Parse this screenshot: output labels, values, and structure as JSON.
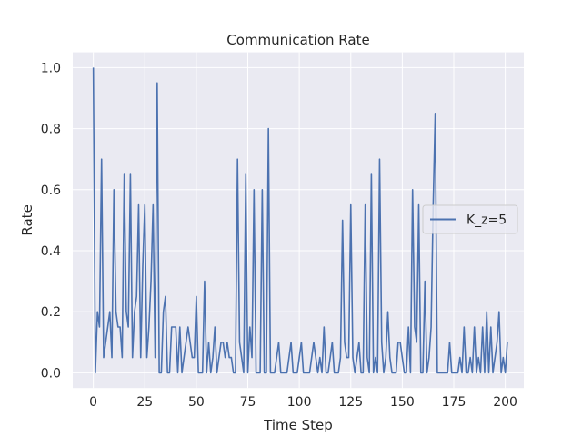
{
  "chart_data": {
    "type": "line",
    "title": "Communication Rate",
    "xlabel": "Time Step",
    "ylabel": "Rate",
    "xlim": [
      -10,
      209
    ],
    "ylim": [
      -0.05,
      1.05
    ],
    "xticks": [
      0,
      25,
      50,
      75,
      100,
      125,
      150,
      175,
      200
    ],
    "yticks": [
      0.0,
      0.2,
      0.4,
      0.6,
      0.8,
      1.0
    ],
    "ytick_labels": [
      "0.0",
      "0.2",
      "0.4",
      "0.6",
      "0.8",
      "1.0"
    ],
    "grid": true,
    "background": "#eaeaf2",
    "legend": {
      "placement": "right"
    },
    "series": [
      {
        "name": "K_z=5",
        "color": "#4c72b0",
        "values": [
          1.0,
          0.0,
          0.2,
          0.15,
          0.7,
          0.05,
          0.1,
          0.15,
          0.2,
          0.05,
          0.6,
          0.2,
          0.15,
          0.15,
          0.05,
          0.65,
          0.2,
          0.15,
          0.65,
          0.05,
          0.2,
          0.25,
          0.55,
          0.05,
          0.35,
          0.55,
          0.05,
          0.15,
          0.3,
          0.55,
          0.05,
          0.95,
          0.0,
          0.0,
          0.2,
          0.25,
          0.0,
          0.0,
          0.15,
          0.15,
          0.15,
          0.0,
          0.15,
          0.0,
          0.05,
          0.1,
          0.15,
          0.1,
          0.05,
          0.05,
          0.25,
          0.0,
          0.0,
          0.0,
          0.3,
          0.0,
          0.1,
          0.0,
          0.05,
          0.15,
          0.0,
          0.05,
          0.1,
          0.1,
          0.05,
          0.1,
          0.05,
          0.05,
          0.0,
          0.0,
          0.7,
          0.1,
          0.05,
          0.0,
          0.65,
          0.0,
          0.15,
          0.05,
          0.6,
          0.0,
          0.0,
          0.0,
          0.6,
          0.0,
          0.0,
          0.8,
          0.0,
          0.0,
          0.0,
          0.05,
          0.1,
          0.0,
          0.0,
          0.0,
          0.0,
          0.05,
          0.1,
          0.0,
          0.0,
          0.0,
          0.05,
          0.1,
          0.0,
          0.0,
          0.0,
          0.0,
          0.05,
          0.1,
          0.05,
          0.0,
          0.05,
          0.0,
          0.15,
          0.0,
          0.0,
          0.05,
          0.1,
          0.0,
          0.0,
          0.0,
          0.05,
          0.5,
          0.1,
          0.05,
          0.05,
          0.55,
          0.05,
          0.0,
          0.05,
          0.1,
          0.0,
          0.0,
          0.55,
          0.05,
          0.0,
          0.65,
          0.0,
          0.05,
          0.0,
          0.7,
          0.1,
          0.0,
          0.05,
          0.2,
          0.05,
          0.0,
          0.0,
          0.0,
          0.1,
          0.1,
          0.05,
          0.0,
          0.0,
          0.15,
          0.0,
          0.6,
          0.15,
          0.1,
          0.55,
          0.0,
          0.0,
          0.3,
          0.0,
          0.05,
          0.15,
          0.55,
          0.85,
          0.0,
          0.0,
          0.0,
          0.0,
          0.0,
          0.0,
          0.1,
          0.0,
          0.0,
          0.0,
          0.0,
          0.05,
          0.0,
          0.15,
          0.0,
          0.0,
          0.05,
          0.0,
          0.15,
          0.0,
          0.05,
          0.0,
          0.15,
          0.0,
          0.2,
          0.0,
          0.15,
          0.0,
          0.05,
          0.1,
          0.2,
          0.0,
          0.05,
          0.0,
          0.1
        ]
      }
    ]
  }
}
